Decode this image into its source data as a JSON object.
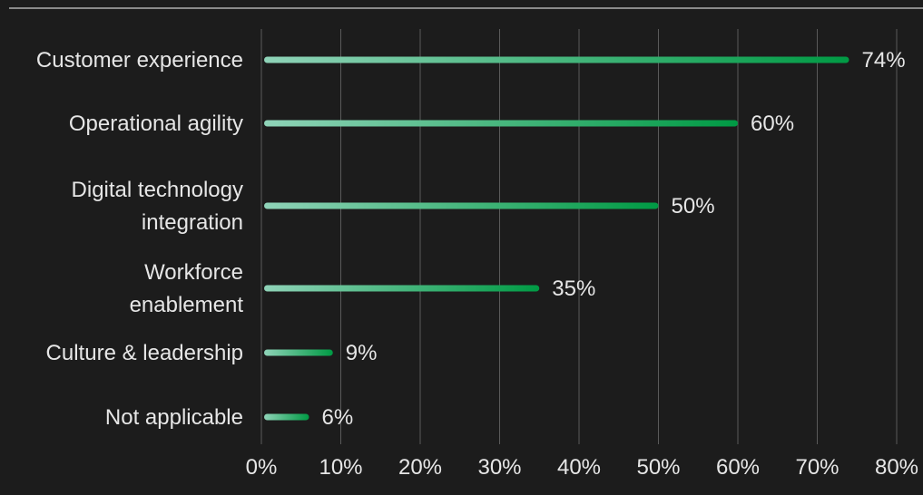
{
  "chart_data": {
    "type": "bar",
    "orientation": "horizontal",
    "categories": [
      [
        "Customer experience"
      ],
      [
        "Operational agility"
      ],
      [
        "Digital technology",
        "integration"
      ],
      [
        "Workforce",
        "enablement"
      ],
      [
        "Culture & leadership"
      ],
      [
        "Not applicable"
      ]
    ],
    "values": [
      74,
      60,
      50,
      35,
      9,
      6
    ],
    "value_labels": [
      "74%",
      "60%",
      "50%",
      "35%",
      "9%",
      "6%"
    ],
    "x_ticks": [
      "0%",
      "10%",
      "20%",
      "30%",
      "40%",
      "50%",
      "60%",
      "70%",
      "80%"
    ],
    "xlim": [
      0,
      80
    ],
    "grid": "vertical",
    "title": "",
    "xlabel": "",
    "ylabel": "",
    "colors": {
      "bar_start": "#8fd3b8",
      "bar_end": "#009a44",
      "background": "#1c1c1c",
      "grid": "#5a5a5a",
      "text": "#e6e6e6",
      "top_rule": "#8a8a8a"
    }
  }
}
